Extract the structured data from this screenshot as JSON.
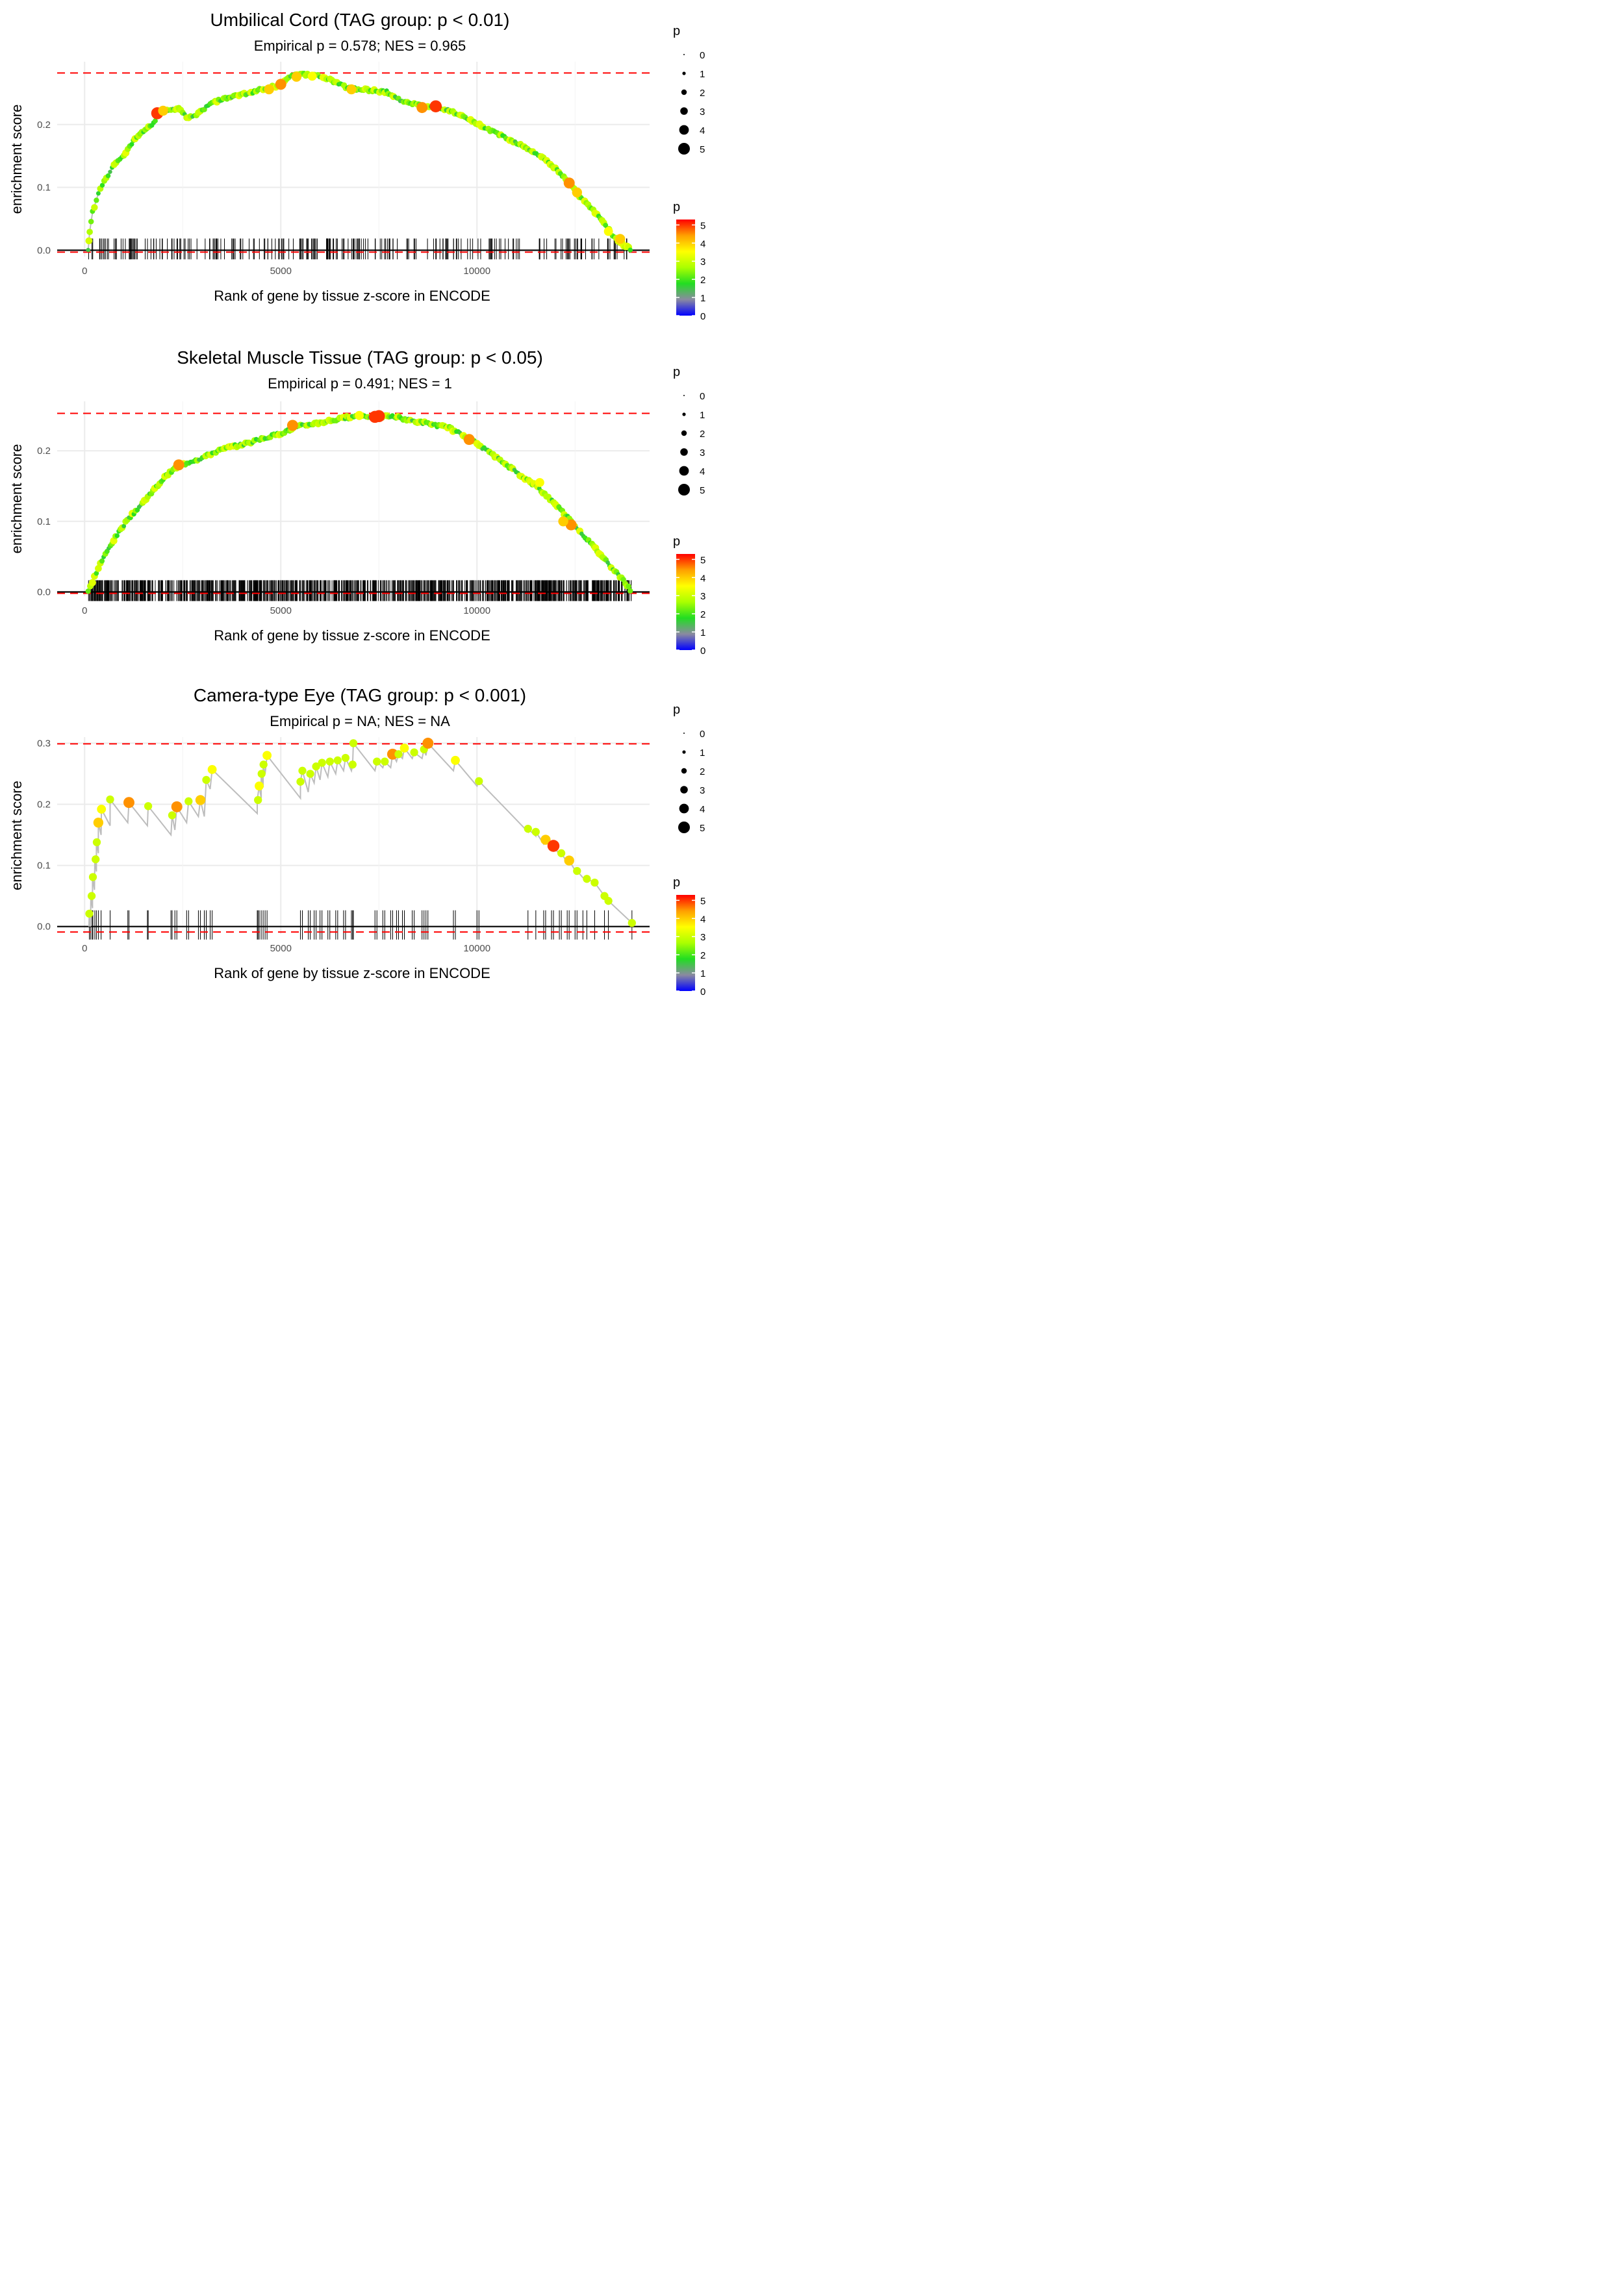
{
  "chart_data": [
    {
      "type": "scatter",
      "title": "Umbilical Cord (TAG group: p < 0.01)",
      "subtitle": "Empirical p = 0.578; NES = 0.965",
      "xlabel": "Rank of gene by tissue z-score in ENCODE",
      "ylabel": "enrichment score",
      "xlim": [
        -700,
        14400
      ],
      "ylim": [
        -0.01,
        0.3
      ],
      "xticks": [
        0,
        5000,
        10000
      ],
      "xtick_labels": [
        "0",
        "5000",
        "10000"
      ],
      "yticks": [
        0.0,
        0.1,
        0.2
      ],
      "ytick_labels": [
        "0.0",
        "0.1",
        "0.2"
      ],
      "hlines": {
        "max": 0.282,
        "min": -0.003
      },
      "curve": [
        [
          90,
          0
        ],
        [
          130,
          0.03
        ],
        [
          200,
          0.06
        ],
        [
          300,
          0.08
        ],
        [
          400,
          0.1
        ],
        [
          600,
          0.12
        ],
        [
          800,
          0.14
        ],
        [
          1000,
          0.15
        ],
        [
          1200,
          0.17
        ],
        [
          1500,
          0.19
        ],
        [
          1800,
          0.205
        ],
        [
          1900,
          0.218
        ],
        [
          2000,
          0.222
        ],
        [
          2200,
          0.224
        ],
        [
          2400,
          0.226
        ],
        [
          2600,
          0.212
        ],
        [
          2800,
          0.215
        ],
        [
          3000,
          0.222
        ],
        [
          3200,
          0.235
        ],
        [
          3500,
          0.24
        ],
        [
          3800,
          0.245
        ],
        [
          4200,
          0.25
        ],
        [
          4500,
          0.256
        ],
        [
          4700,
          0.258
        ],
        [
          5000,
          0.264
        ],
        [
          5200,
          0.275
        ],
        [
          5500,
          0.28
        ],
        [
          5900,
          0.278
        ],
        [
          6300,
          0.27
        ],
        [
          6700,
          0.258
        ],
        [
          7200,
          0.255
        ],
        [
          7700,
          0.252
        ],
        [
          8000,
          0.24
        ],
        [
          8400,
          0.233
        ],
        [
          8700,
          0.228
        ],
        [
          9000,
          0.228
        ],
        [
          9300,
          0.222
        ],
        [
          9700,
          0.21
        ],
        [
          10200,
          0.195
        ],
        [
          10700,
          0.18
        ],
        [
          11200,
          0.165
        ],
        [
          11600,
          0.15
        ],
        [
          12000,
          0.13
        ],
        [
          12300,
          0.11
        ],
        [
          12700,
          0.08
        ],
        [
          13100,
          0.055
        ],
        [
          13500,
          0.02
        ],
        [
          13700,
          0.01
        ],
        [
          13950,
          0
        ]
      ],
      "highlights": [
        [
          1850,
          0.218,
          5
        ],
        [
          2000,
          0.222,
          4
        ],
        [
          4700,
          0.256,
          4
        ],
        [
          5000,
          0.264,
          4.5
        ],
        [
          5400,
          0.276,
          4
        ],
        [
          5800,
          0.277,
          3.5
        ],
        [
          6800,
          0.256,
          4
        ],
        [
          8600,
          0.227,
          4.5
        ],
        [
          8950,
          0.229,
          5
        ],
        [
          12350,
          0.107,
          4.5
        ],
        [
          12550,
          0.092,
          4
        ],
        [
          13650,
          0.018,
          4
        ],
        [
          13350,
          0.03,
          3.5
        ]
      ],
      "rug_count": 240,
      "rug_range": [
        90,
        13950
      ],
      "rug_seed": 7,
      "rug_dense": false
    },
    {
      "type": "scatter",
      "title": "Skeletal Muscle Tissue (TAG group: p < 0.05)",
      "subtitle": "Empirical p = 0.491; NES = 1",
      "xlabel": "Rank of gene by tissue z-score in ENCODE",
      "ylabel": "enrichment score",
      "xlim": [
        -700,
        14400
      ],
      "ylim": [
        -0.006,
        0.27
      ],
      "xticks": [
        0,
        5000,
        10000
      ],
      "xtick_labels": [
        "0",
        "5000",
        "10000"
      ],
      "yticks": [
        0.0,
        0.1,
        0.2
      ],
      "ytick_labels": [
        "0.0",
        "0.1",
        "0.2"
      ],
      "hlines": {
        "max": 0.253,
        "min": -0.002
      },
      "curve": [
        [
          90,
          0
        ],
        [
          200,
          0.015
        ],
        [
          400,
          0.04
        ],
        [
          700,
          0.07
        ],
        [
          1000,
          0.095
        ],
        [
          1300,
          0.115
        ],
        [
          1700,
          0.14
        ],
        [
          2000,
          0.16
        ],
        [
          2300,
          0.175
        ],
        [
          2700,
          0.185
        ],
        [
          3000,
          0.19
        ],
        [
          3300,
          0.198
        ],
        [
          3700,
          0.205
        ],
        [
          4100,
          0.21
        ],
        [
          4600,
          0.218
        ],
        [
          5000,
          0.225
        ],
        [
          5500,
          0.235
        ],
        [
          6000,
          0.24
        ],
        [
          6500,
          0.245
        ],
        [
          7000,
          0.25
        ],
        [
          7400,
          0.248
        ],
        [
          7800,
          0.249
        ],
        [
          8300,
          0.243
        ],
        [
          8800,
          0.238
        ],
        [
          9300,
          0.232
        ],
        [
          9700,
          0.22
        ],
        [
          10000,
          0.21
        ],
        [
          10500,
          0.19
        ],
        [
          11000,
          0.17
        ],
        [
          11500,
          0.15
        ],
        [
          12000,
          0.125
        ],
        [
          12400,
          0.1
        ],
        [
          12800,
          0.075
        ],
        [
          13200,
          0.05
        ],
        [
          13600,
          0.025
        ],
        [
          13950,
          0
        ]
      ],
      "highlights": [
        [
          2400,
          0.18,
          4.5
        ],
        [
          5300,
          0.236,
          4.5
        ],
        [
          7000,
          0.25,
          3.5
        ],
        [
          7400,
          0.248,
          5
        ],
        [
          7500,
          0.249,
          5
        ],
        [
          9800,
          0.216,
          4.5
        ],
        [
          12400,
          0.095,
          4.5
        ],
        [
          12200,
          0.1,
          4
        ],
        [
          11600,
          0.155,
          3.5
        ]
      ],
      "rug_count": 950,
      "rug_range": [
        90,
        13950
      ],
      "rug_seed": 11,
      "rug_dense": true
    },
    {
      "type": "scatter",
      "title": "Camera-type Eye (TAG group: p < 0.001)",
      "subtitle": "Empirical p = NA; NES = NA",
      "xlabel": "Rank of gene by tissue z-score in ENCODE",
      "ylabel": "enrichment score",
      "xlim": [
        -700,
        14400
      ],
      "ylim": [
        -0.012,
        0.31
      ],
      "xticks": [
        0,
        5000,
        10000
      ],
      "xtick_labels": [
        "0",
        "5000",
        "10000"
      ],
      "yticks": [
        0.0,
        0.1,
        0.2,
        0.3
      ],
      "ytick_labels": [
        "0.0",
        "0.1",
        "0.2",
        "0.3"
      ],
      "hlines": {
        "max": 0.299,
        "min": -0.009
      },
      "curve": [
        [
          110,
          0.0
        ],
        [
          120,
          0.021
        ],
        [
          150,
          0.0
        ],
        [
          160,
          0.05
        ],
        [
          200,
          0.03
        ],
        [
          200,
          0.081
        ],
        [
          250,
          0.06
        ],
        [
          260,
          0.11
        ],
        [
          300,
          0.09
        ],
        [
          300,
          0.138
        ],
        [
          350,
          0.12
        ],
        [
          350,
          0.17
        ],
        [
          420,
          0.15
        ],
        [
          430,
          0.192
        ],
        [
          650,
          0.165
        ],
        [
          650,
          0.208
        ],
        [
          1100,
          0.17
        ],
        [
          1130,
          0.203
        ],
        [
          1600,
          0.165
        ],
        [
          1620,
          0.197
        ],
        [
          2200,
          0.15
        ],
        [
          2230,
          0.182
        ],
        [
          2300,
          0.158
        ],
        [
          2350,
          0.196
        ],
        [
          2600,
          0.17
        ],
        [
          2650,
          0.205
        ],
        [
          2900,
          0.18
        ],
        [
          2950,
          0.207
        ],
        [
          3050,
          0.18
        ],
        [
          3100,
          0.24
        ],
        [
          3200,
          0.225
        ],
        [
          3250,
          0.257
        ],
        [
          4400,
          0.185
        ],
        [
          4400,
          0.207
        ],
        [
          4450,
          0.23
        ],
        [
          4500,
          0.21
        ],
        [
          4500,
          0.25
        ],
        [
          4550,
          0.228
        ],
        [
          4550,
          0.265
        ],
        [
          4600,
          0.25
        ],
        [
          4650,
          0.28
        ],
        [
          5500,
          0.21
        ],
        [
          5500,
          0.237
        ],
        [
          5550,
          0.255
        ],
        [
          5700,
          0.22
        ],
        [
          5750,
          0.25
        ],
        [
          5850,
          0.235
        ],
        [
          5900,
          0.262
        ],
        [
          6000,
          0.24
        ],
        [
          6050,
          0.268
        ],
        [
          6200,
          0.245
        ],
        [
          6250,
          0.27
        ],
        [
          6400,
          0.25
        ],
        [
          6450,
          0.272
        ],
        [
          6600,
          0.255
        ],
        [
          6650,
          0.276
        ],
        [
          6800,
          0.255
        ],
        [
          6830,
          0.265
        ],
        [
          6850,
          0.3
        ],
        [
          7400,
          0.255
        ],
        [
          7450,
          0.27
        ],
        [
          7600,
          0.26
        ],
        [
          7650,
          0.27
        ],
        [
          7800,
          0.26
        ],
        [
          7850,
          0.282
        ],
        [
          7950,
          0.27
        ],
        [
          8000,
          0.282
        ],
        [
          8100,
          0.275
        ],
        [
          8150,
          0.292
        ],
        [
          8350,
          0.275
        ],
        [
          8400,
          0.285
        ],
        [
          8600,
          0.275
        ],
        [
          8650,
          0.29
        ],
        [
          8700,
          0.28
        ],
        [
          8750,
          0.3
        ],
        [
          9400,
          0.255
        ],
        [
          9450,
          0.272
        ],
        [
          10000,
          0.23
        ],
        [
          10050,
          0.238
        ],
        [
          11300,
          0.155
        ],
        [
          11300,
          0.16
        ],
        [
          11500,
          0.148
        ],
        [
          11500,
          0.155
        ],
        [
          11700,
          0.135
        ],
        [
          11750,
          0.142
        ],
        [
          11900,
          0.128
        ],
        [
          11950,
          0.132
        ],
        [
          12100,
          0.118
        ],
        [
          12150,
          0.12
        ],
        [
          12300,
          0.105
        ],
        [
          12350,
          0.108
        ],
        [
          12500,
          0.092
        ],
        [
          12550,
          0.091
        ],
        [
          12700,
          0.08
        ],
        [
          12800,
          0.078
        ],
        [
          13000,
          0.072
        ],
        [
          13250,
          0.05
        ],
        [
          13350,
          0.042
        ],
        [
          13950,
          0.006
        ]
      ],
      "highlights": [
        [
          120,
          0.021,
          3
        ],
        [
          180,
          0.05,
          3
        ],
        [
          210,
          0.081,
          3
        ],
        [
          280,
          0.11,
          3
        ],
        [
          310,
          0.138,
          3
        ],
        [
          350,
          0.17,
          4
        ],
        [
          430,
          0.192,
          3.5
        ],
        [
          650,
          0.208,
          3
        ],
        [
          1130,
          0.203,
          4.5
        ],
        [
          1620,
          0.197,
          3
        ],
        [
          2230,
          0.182,
          3
        ],
        [
          2350,
          0.196,
          4.5
        ],
        [
          2650,
          0.205,
          3
        ],
        [
          2950,
          0.207,
          4
        ],
        [
          3100,
          0.24,
          3
        ],
        [
          3250,
          0.257,
          3.5
        ],
        [
          4420,
          0.207,
          3
        ],
        [
          4450,
          0.23,
          3.5
        ],
        [
          4510,
          0.25,
          3
        ],
        [
          4560,
          0.265,
          3
        ],
        [
          4650,
          0.28,
          3.5
        ],
        [
          5500,
          0.237,
          3
        ],
        [
          5550,
          0.255,
          3
        ],
        [
          5750,
          0.25,
          3
        ],
        [
          5900,
          0.262,
          3
        ],
        [
          6050,
          0.268,
          3
        ],
        [
          6250,
          0.27,
          3
        ],
        [
          6450,
          0.272,
          3
        ],
        [
          6650,
          0.276,
          3
        ],
        [
          6830,
          0.265,
          3
        ],
        [
          6850,
          0.3,
          3
        ],
        [
          7450,
          0.27,
          3
        ],
        [
          7650,
          0.27,
          3
        ],
        [
          7850,
          0.282,
          4.5
        ],
        [
          8000,
          0.282,
          3
        ],
        [
          8150,
          0.292,
          3.5
        ],
        [
          8400,
          0.285,
          3
        ],
        [
          8650,
          0.29,
          3
        ],
        [
          8750,
          0.3,
          4.5
        ],
        [
          9450,
          0.272,
          3.5
        ],
        [
          10050,
          0.238,
          3
        ],
        [
          11300,
          0.16,
          3
        ],
        [
          11500,
          0.155,
          3
        ],
        [
          11750,
          0.142,
          4
        ],
        [
          11950,
          0.132,
          5
        ],
        [
          12150,
          0.12,
          3
        ],
        [
          12350,
          0.108,
          4
        ],
        [
          12550,
          0.091,
          3
        ],
        [
          12800,
          0.078,
          3
        ],
        [
          13000,
          0.072,
          3
        ],
        [
          13250,
          0.05,
          3
        ],
        [
          13350,
          0.042,
          3
        ],
        [
          13950,
          0.006,
          3
        ]
      ],
      "rug_positions": [
        120,
        150,
        190,
        210,
        260,
        300,
        350,
        420,
        650,
        1100,
        1130,
        1600,
        1620,
        2200,
        2230,
        2300,
        2350,
        2600,
        2650,
        2900,
        2950,
        3050,
        3100,
        3200,
        3250,
        4400,
        4420,
        4450,
        4500,
        4550,
        4600,
        4650,
        5500,
        5550,
        5700,
        5750,
        5850,
        5900,
        6000,
        6050,
        6200,
        6250,
        6400,
        6450,
        6600,
        6650,
        6800,
        6830,
        6850,
        7400,
        7450,
        7600,
        7650,
        7800,
        7850,
        7950,
        8000,
        8100,
        8150,
        8350,
        8400,
        8600,
        8650,
        8700,
        8750,
        9400,
        9450,
        10000,
        10050,
        11300,
        11500,
        11700,
        11750,
        11900,
        11950,
        12100,
        12150,
        12300,
        12350,
        12500,
        12550,
        12700,
        12800,
        13000,
        13250,
        13350,
        13950
      ]
    }
  ],
  "legend": {
    "size_title": "p",
    "size_labels": [
      "0",
      "1",
      "2",
      "3",
      "4",
      "5"
    ],
    "color_title": "p",
    "color_labels": [
      "5",
      "4",
      "3",
      "2",
      "1",
      "0"
    ],
    "gradient": [
      "#0000ff",
      "#8a8aa0",
      "#22dd22",
      "#aaff00",
      "#ffff00",
      "#ffa000",
      "#ff0000"
    ]
  },
  "colors": {
    "curve_line": "#bdbdbd",
    "hline": "#ff0000",
    "zero_line": "#000000",
    "grid": "#ebebeb"
  }
}
